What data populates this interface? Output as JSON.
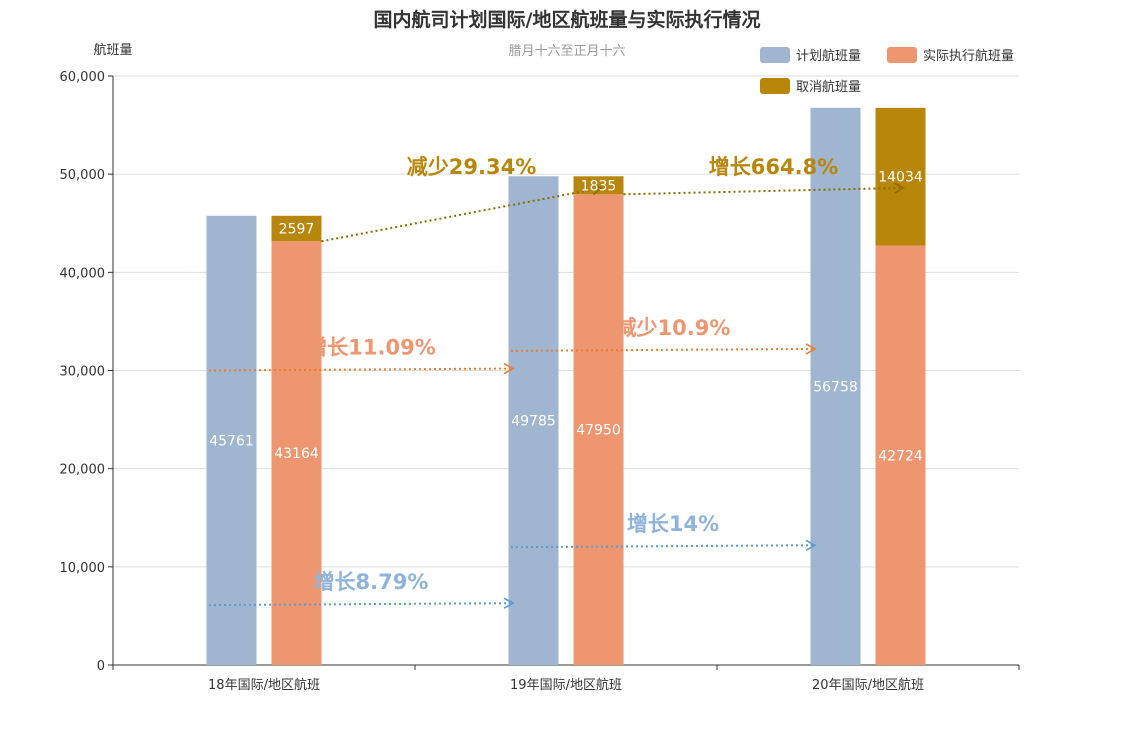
{
  "chart_data": {
    "type": "bar",
    "title": "国内航司计划国际/地区航班量与实际执行情况",
    "subtitle": "腊月十六至正月十六",
    "ylabel": "航班量",
    "ylim": [
      0,
      60000
    ],
    "yticks": [
      "0",
      "10,000",
      "20,000",
      "30,000",
      "40,000",
      "50,000",
      "60,000"
    ],
    "categories": [
      "18年国际/地区航班",
      "19年国际/地区航班",
      "20年国际/地区航班"
    ],
    "series": [
      {
        "name": "计划航班量",
        "values": [
          45761,
          49785,
          56758
        ],
        "color": "#a0b5cf",
        "stack": "plan"
      },
      {
        "name": "实际执行航班量",
        "values": [
          43164,
          47950,
          42724
        ],
        "color": "#ee9670",
        "stack": "actual"
      },
      {
        "name": "取消航班量",
        "values": [
          2597,
          1835,
          14034
        ],
        "color": "#b8860b",
        "stack": "actual"
      }
    ],
    "legend": [
      "计划航班量",
      "实际执行航班量",
      "取消航班量"
    ],
    "legend_position": "top-right",
    "grid": true,
    "annotations": [
      {
        "text": "增长8.79%",
        "color": "#8fb4dc",
        "series": "计划航班量",
        "from": 0,
        "to": 1
      },
      {
        "text": "增长14%",
        "color": "#8fb4dc",
        "series": "计划航班量",
        "from": 1,
        "to": 2
      },
      {
        "text": "增长11.09%",
        "color": "#ee9670",
        "series": "实际执行航班量",
        "from": 0,
        "to": 1
      },
      {
        "text": "减少10.9%",
        "color": "#ee9670",
        "series": "实际执行航班量",
        "from": 1,
        "to": 2
      },
      {
        "text": "减少29.34%",
        "color": "#b8860b",
        "series": "取消航班量",
        "from": 0,
        "to": 1
      },
      {
        "text": "增长664.8%",
        "color": "#b8860b",
        "series": "取消航班量",
        "from": 1,
        "to": 2
      }
    ]
  }
}
